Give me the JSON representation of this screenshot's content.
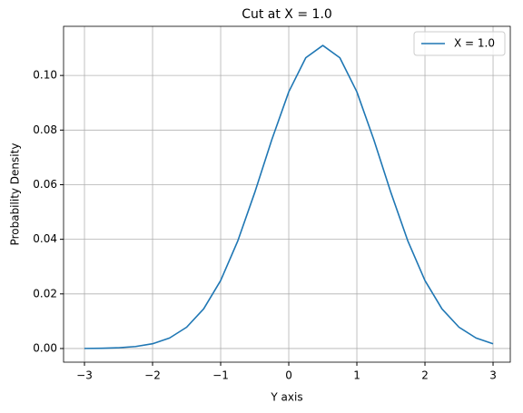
{
  "chart_data": {
    "type": "line",
    "title": "Cut at X = 1.0",
    "x_label": "Y axis",
    "y_label": "Probability Density",
    "x": [
      -3,
      -2.75,
      -2.5,
      -2.25,
      -2,
      -1.75,
      -1.5,
      -1.25,
      -1,
      -0.75,
      -0.5,
      -0.25,
      0,
      0.25,
      0.5,
      0.75,
      1,
      1.25,
      1.5,
      1.75,
      2,
      2.25,
      2.5,
      2.75,
      3
    ],
    "series": [
      {
        "name": "X = 1.0",
        "color": "#1f77b4",
        "values": [
          3e-05,
          0.0001,
          0.00028,
          0.00073,
          0.00175,
          0.00385,
          0.0078,
          0.0145,
          0.0249,
          0.0393,
          0.0571,
          0.0764,
          0.094,
          0.1065,
          0.111,
          0.1065,
          0.094,
          0.0764,
          0.0571,
          0.0393,
          0.0249,
          0.0145,
          0.0078,
          0.00385,
          0.00175
        ]
      }
    ],
    "xlim": [
      -3.307,
      3.253
    ],
    "ylim": [
      -0.005,
      0.118
    ],
    "xticks": [
      {
        "value": -3,
        "label": "−3"
      },
      {
        "value": -2,
        "label": "−2"
      },
      {
        "value": -1,
        "label": "−1"
      },
      0,
      1,
      2,
      3
    ],
    "yticks": [
      {
        "value": 0,
        "label": "0.00"
      },
      {
        "value": 0.02,
        "label": "0.02"
      },
      {
        "value": 0.04,
        "label": "0.04"
      },
      {
        "value": 0.06,
        "label": "0.06"
      },
      {
        "value": 0.08,
        "label": "0.08"
      },
      {
        "value": 0.1,
        "label": "0.10"
      }
    ],
    "grid": true,
    "legend": "upper-right"
  }
}
